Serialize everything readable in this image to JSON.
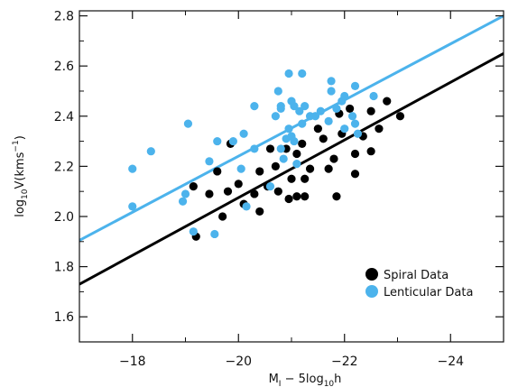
{
  "chart_data": {
    "type": "scatter",
    "xlabel": "M_I − 5log10h",
    "xlabel_parts": {
      "a": "M",
      "a_sub": "I",
      "b": " − 5log",
      "b_sub": "10",
      "c": "h"
    },
    "ylabel": "log10V(kms−1)",
    "ylabel_parts": {
      "a": "log",
      "a_sub": "10",
      "b": "V(kms",
      "b_sup": "−1",
      "c": ")"
    },
    "xlim": [
      -17,
      -25
    ],
    "ylim": [
      1.5,
      2.82
    ],
    "x_ticks": [
      -18,
      -20,
      -22,
      -24
    ],
    "x_tick_labels": [
      "−18",
      "−20",
      "−22",
      "−24"
    ],
    "y_ticks": [
      1.6,
      1.8,
      2.0,
      2.2,
      2.4,
      2.6,
      2.8
    ],
    "y_tick_labels": [
      "1.6",
      "1.8",
      "2.0",
      "2.2",
      "2.4",
      "2.6",
      "2.8"
    ],
    "legend_position": "bottom-right",
    "series": [
      {
        "name": "Spiral Data",
        "color": "#000000",
        "points": [
          [
            -19.2,
            1.92
          ],
          [
            -19.15,
            2.12
          ],
          [
            -19.45,
            2.09
          ],
          [
            -19.6,
            2.18
          ],
          [
            -19.7,
            2.0
          ],
          [
            -19.8,
            2.1
          ],
          [
            -19.85,
            2.29
          ],
          [
            -20.0,
            2.13
          ],
          [
            -20.1,
            2.05
          ],
          [
            -20.3,
            2.09
          ],
          [
            -20.4,
            2.18
          ],
          [
            -20.4,
            2.02
          ],
          [
            -20.6,
            2.27
          ],
          [
            -20.55,
            2.12
          ],
          [
            -20.7,
            2.2
          ],
          [
            -20.75,
            2.1
          ],
          [
            -20.9,
            2.27
          ],
          [
            -20.95,
            2.07
          ],
          [
            -21.0,
            2.15
          ],
          [
            -21.1,
            2.25
          ],
          [
            -21.2,
            2.29
          ],
          [
            -21.25,
            2.08
          ],
          [
            -21.25,
            2.15
          ],
          [
            -21.35,
            2.19
          ],
          [
            -21.5,
            2.35
          ],
          [
            -21.6,
            2.31
          ],
          [
            -21.7,
            2.19
          ],
          [
            -21.8,
            2.23
          ],
          [
            -21.85,
            2.08
          ],
          [
            -21.9,
            2.41
          ],
          [
            -22.1,
            2.43
          ],
          [
            -22.2,
            2.25
          ],
          [
            -22.2,
            2.17
          ],
          [
            -22.35,
            2.32
          ],
          [
            -22.5,
            2.26
          ],
          [
            -22.5,
            2.42
          ],
          [
            -22.65,
            2.35
          ],
          [
            -22.8,
            2.46
          ],
          [
            -23.05,
            2.4
          ],
          [
            -21.95,
            2.33
          ],
          [
            -21.1,
            2.08
          ]
        ]
      },
      {
        "name": "Lenticular Data",
        "color": "#4cb3ec",
        "points": [
          [
            -18.0,
            2.19
          ],
          [
            -18.0,
            2.04
          ],
          [
            -18.35,
            2.26
          ],
          [
            -18.95,
            2.06
          ],
          [
            -19.0,
            2.09
          ],
          [
            -19.05,
            2.37
          ],
          [
            -19.15,
            1.94
          ],
          [
            -19.45,
            2.22
          ],
          [
            -19.55,
            1.93
          ],
          [
            -19.6,
            2.3
          ],
          [
            -19.9,
            2.3
          ],
          [
            -20.1,
            2.33
          ],
          [
            -20.05,
            2.19
          ],
          [
            -20.15,
            2.04
          ],
          [
            -20.3,
            2.44
          ],
          [
            -20.3,
            2.27
          ],
          [
            -20.6,
            2.12
          ],
          [
            -20.7,
            2.4
          ],
          [
            -20.75,
            2.5
          ],
          [
            -20.8,
            2.44
          ],
          [
            -20.8,
            2.27
          ],
          [
            -20.85,
            2.23
          ],
          [
            -20.9,
            2.31
          ],
          [
            -20.95,
            2.57
          ],
          [
            -20.95,
            2.35
          ],
          [
            -21.0,
            2.46
          ],
          [
            -21.0,
            2.32
          ],
          [
            -21.05,
            2.44
          ],
          [
            -21.05,
            2.3
          ],
          [
            -21.1,
            2.21
          ],
          [
            -21.15,
            2.42
          ],
          [
            -21.2,
            2.57
          ],
          [
            -21.2,
            2.37
          ],
          [
            -21.25,
            2.44
          ],
          [
            -21.35,
            2.4
          ],
          [
            -21.45,
            2.4
          ],
          [
            -21.55,
            2.42
          ],
          [
            -21.7,
            2.38
          ],
          [
            -21.75,
            2.54
          ],
          [
            -21.75,
            2.5
          ],
          [
            -21.85,
            2.43
          ],
          [
            -21.95,
            2.46
          ],
          [
            -22.0,
            2.35
          ],
          [
            -22.0,
            2.48
          ],
          [
            -22.15,
            2.4
          ],
          [
            -22.2,
            2.37
          ],
          [
            -22.2,
            2.52
          ],
          [
            -22.25,
            2.33
          ],
          [
            -22.55,
            2.48
          ],
          [
            -20.8,
            2.43
          ]
        ]
      }
    ],
    "fit_lines": [
      {
        "color": "#000000",
        "from": [
          -17.0,
          1.73
        ],
        "to": [
          -25.0,
          2.65
        ]
      },
      {
        "color": "#4cb3ec",
        "from": [
          -17.0,
          1.905
        ],
        "to": [
          -25.0,
          2.8
        ]
      }
    ]
  }
}
